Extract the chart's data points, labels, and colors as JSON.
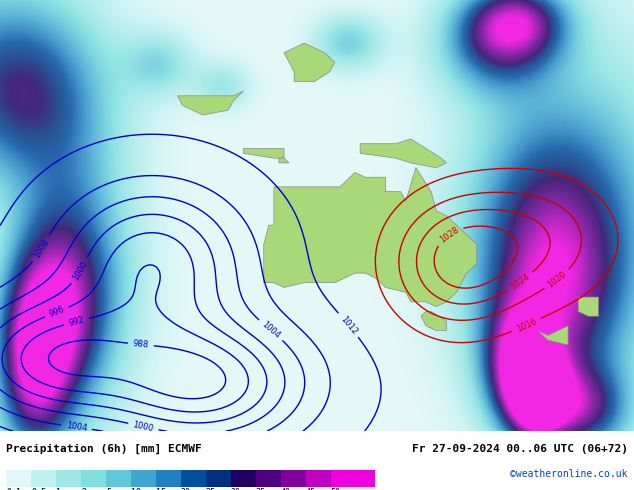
{
  "title_left": "Precipitation (6h) [mm] ECMWF",
  "title_right": "Fr 27-09-2024 00..06 UTC (06+72)",
  "credit": "©weatheronline.co.uk",
  "colorbar_levels": [
    0.1,
    0.5,
    1,
    2,
    5,
    10,
    15,
    20,
    25,
    30,
    35,
    40,
    45,
    50
  ],
  "colorbar_colors": [
    "#e0f8f8",
    "#c0f0f0",
    "#a0e8e8",
    "#80e0e0",
    "#60c8d8",
    "#40a8d0",
    "#2080c0",
    "#0050a0",
    "#003080",
    "#200060",
    "#500080",
    "#8000a0",
    "#c000c0",
    "#f000e0"
  ],
  "bg_color": "#d0e8f8",
  "map_bg": "#d0e8f8",
  "fig_width": 6.34,
  "fig_height": 4.9,
  "dpi": 100,
  "bottom_bar_height": 0.1,
  "contour_blue_color": "#0000cc",
  "contour_red_color": "#cc0000",
  "land_color": "#a8d878",
  "sea_color": "#c8e8f8"
}
